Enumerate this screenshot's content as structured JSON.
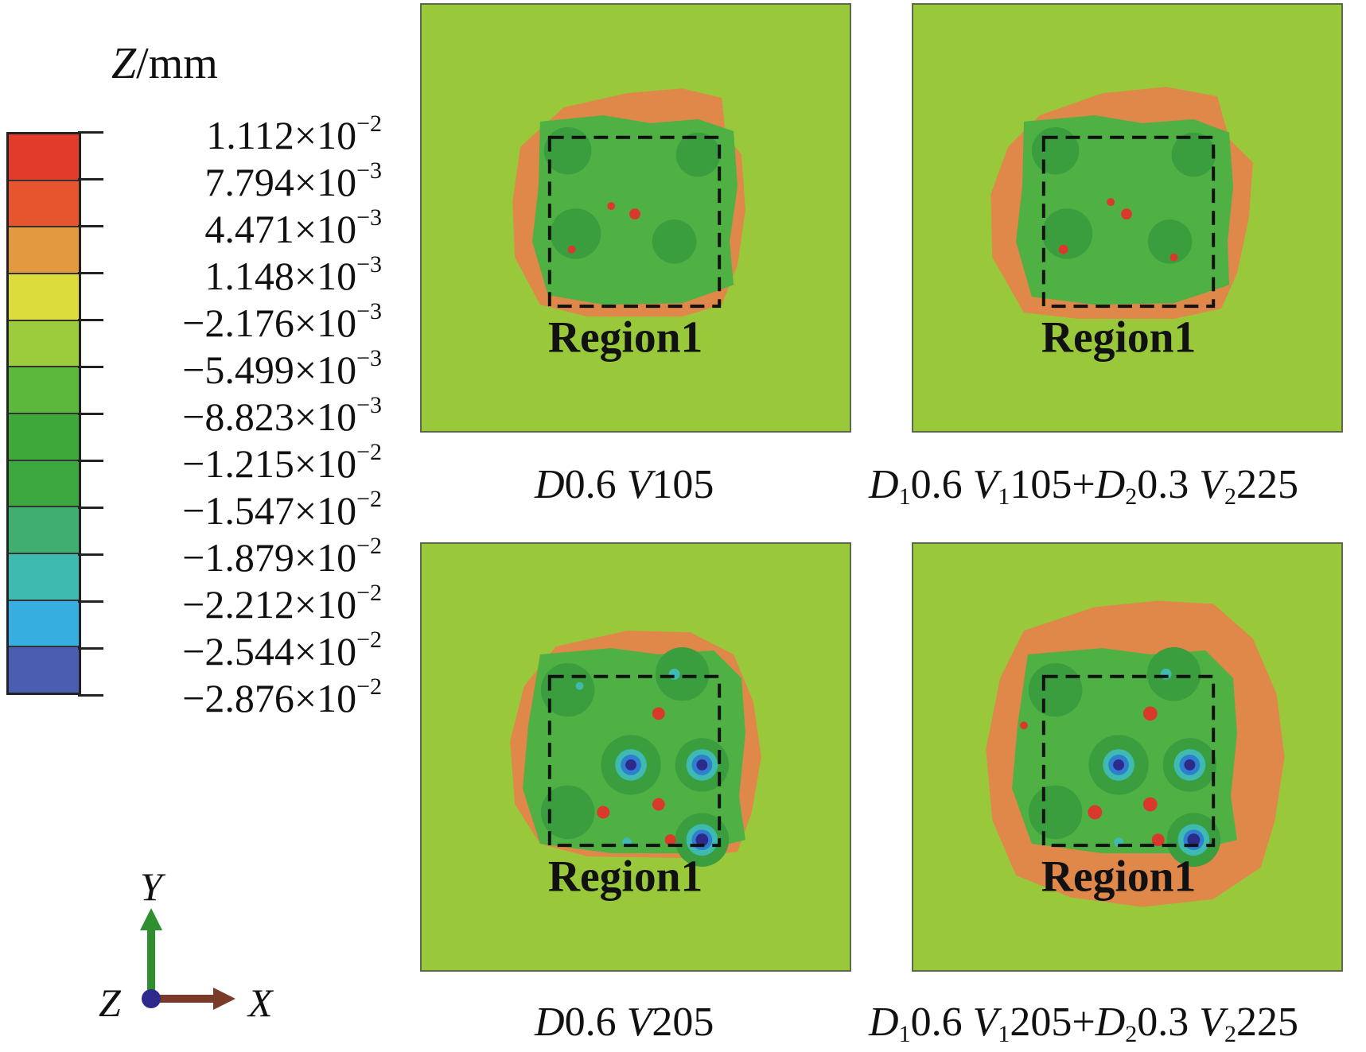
{
  "legend": {
    "title_var": "Z",
    "title_unit": "/mm",
    "ticks": [
      {
        "mant": "1.112",
        "exp": "−2"
      },
      {
        "mant": "7.794",
        "exp": "−3"
      },
      {
        "mant": "4.471",
        "exp": "−3"
      },
      {
        "mant": "1.148",
        "exp": "−3"
      },
      {
        "mant": "−2.176",
        "exp": "−3"
      },
      {
        "mant": "−5.499",
        "exp": "−3"
      },
      {
        "mant": "−8.823",
        "exp": "−3"
      },
      {
        "mant": "−1.215",
        "exp": "−2"
      },
      {
        "mant": "−1.547",
        "exp": "−2"
      },
      {
        "mant": "−1.879",
        "exp": "−2"
      },
      {
        "mant": "−2.212",
        "exp": "−2"
      },
      {
        "mant": "−2.544",
        "exp": "−2"
      },
      {
        "mant": "−2.876",
        "exp": "−2"
      }
    ],
    "times": "×10",
    "colors": [
      "#e23a2b",
      "#e7552f",
      "#e39a3f",
      "#dcdc3c",
      "#9ccc3c",
      "#5cb83c",
      "#3ea83a",
      "#3ca63f",
      "#3fae6e",
      "#3fbab0",
      "#36aee0",
      "#4a5db0",
      "#3c3a96"
    ]
  },
  "colors": {
    "background": "#99c93a",
    "orange": "#e0874a",
    "green": "#4fb144",
    "dark_green": "#3a9e3e",
    "red": "#d9392c",
    "cyan": "#3fbab0",
    "blue": "#2f7fd0",
    "navy": "#2e2a8c"
  },
  "panels": [
    {
      "title": {
        "d": "D",
        "d_val": "0.6",
        "v": "V",
        "v_val": "105"
      },
      "region": "Region1"
    },
    {
      "title": {
        "d1": "D",
        "sub1": "1",
        "d1_val": "0.6",
        "v1": "V",
        "v1sub": "1",
        "v1_val": "105+",
        "d2": "D",
        "sub2": "2",
        "d2_val": "0.3",
        "v2": "V",
        "v2sub": "2",
        "v2_val": "225"
      },
      "region": "Region1"
    },
    {
      "title": {
        "d": "D",
        "d_val": "0.6",
        "v": "V",
        "v_val": "205"
      },
      "region": "Region1"
    },
    {
      "title": {
        "d1": "D",
        "sub1": "1",
        "d1_val": "0.6",
        "v1": "V",
        "v1sub": "1",
        "v1_val": "205+",
        "d2": "D",
        "sub2": "2",
        "d2_val": "0.3",
        "v2": "V",
        "v2sub": "2",
        "v2_val": "225"
      },
      "region": "Region1"
    }
  ],
  "axes": {
    "y": "Y",
    "z": "Z",
    "x": "X"
  }
}
